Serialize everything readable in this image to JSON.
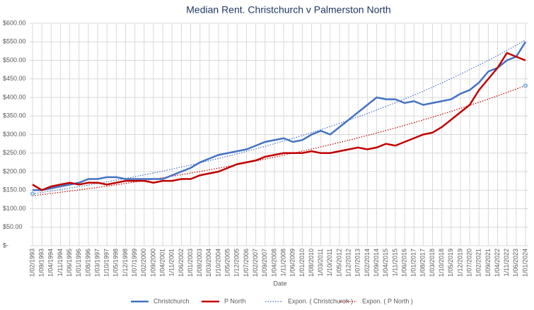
{
  "chart_data": {
    "type": "line",
    "title": "Median Rent. Christchurch v Palmerston North",
    "x_label": "Date",
    "categories": [
      "1/02/1993",
      "1/09/1993",
      "1/04/1994",
      "1/11/1994",
      "1/06/1995",
      "1/01/1996",
      "1/08/1996",
      "1/03/1997",
      "1/10/1997",
      "1/05/1998",
      "1/12/1998",
      "1/07/1999",
      "1/02/2000",
      "1/09/2000",
      "1/04/2001",
      "1/11/2001",
      "1/06/2002",
      "1/01/2003",
      "1/08/2003",
      "1/03/2004",
      "1/10/2004",
      "1/05/2005",
      "1/12/2005",
      "1/07/2006",
      "1/02/2007",
      "1/09/2007",
      "1/04/2008",
      "1/11/2008",
      "1/06/2009",
      "1/01/2010",
      "1/08/2010",
      "1/03/2011",
      "1/10/2011",
      "1/05/2012",
      "1/12/2012",
      "1/07/2013",
      "1/02/2014",
      "1/09/2014",
      "1/04/2015",
      "1/11/2015",
      "1/06/2016",
      "1/01/2017",
      "1/08/2017",
      "1/03/2018",
      "1/10/2018",
      "1/05/2019",
      "1/12/2019",
      "1/07/2020",
      "1/02/2021",
      "1/09/2021",
      "1/04/2022",
      "1/11/2022",
      "1/06/2023",
      "1/01/2024"
    ],
    "series": [
      {
        "name": "Christchurch",
        "color": "#4472c4",
        "values": [
          150,
          150,
          155,
          160,
          165,
          170,
          180,
          180,
          185,
          185,
          180,
          180,
          180,
          180,
          180,
          190,
          200,
          210,
          225,
          235,
          245,
          250,
          255,
          260,
          270,
          280,
          285,
          290,
          280,
          285,
          300,
          310,
          300,
          320,
          340,
          360,
          380,
          400,
          395,
          395,
          385,
          390,
          380,
          385,
          390,
          395,
          410,
          420,
          440,
          470,
          480,
          500,
          510,
          550
        ]
      },
      {
        "name": "P North",
        "color": "#c00000",
        "values": [
          165,
          150,
          160,
          165,
          170,
          165,
          170,
          170,
          165,
          170,
          175,
          175,
          175,
          170,
          175,
          175,
          180,
          180,
          190,
          195,
          200,
          210,
          220,
          225,
          230,
          240,
          245,
          250,
          250,
          250,
          255,
          250,
          250,
          255,
          260,
          265,
          260,
          265,
          275,
          270,
          280,
          290,
          300,
          305,
          320,
          340,
          360,
          380,
          420,
          450,
          480,
          520,
          510,
          500
        ]
      }
    ],
    "trendlines": [
      {
        "name": "Expon. ( Christchurch )",
        "color": "#4472c4",
        "from": 140,
        "to": 555
      },
      {
        "name": "Expon. ( P North )",
        "color": "#c00000",
        "from": 135,
        "to": 432
      }
    ],
    "ylim": [
      0,
      600
    ],
    "yticks": [
      {
        "value": 0,
        "label": "$-"
      },
      {
        "value": 50,
        "label": "$50.00"
      },
      {
        "value": 100,
        "label": "$100.00"
      },
      {
        "value": 150,
        "label": "$150.00"
      },
      {
        "value": 200,
        "label": "$200.00"
      },
      {
        "value": 250,
        "label": "$250.00"
      },
      {
        "value": 300,
        "label": "$300.00"
      },
      {
        "value": 350,
        "label": "$350.00"
      },
      {
        "value": 400,
        "label": "$400.00"
      },
      {
        "value": 450,
        "label": "$450.00"
      },
      {
        "value": 500,
        "label": "$500.00"
      },
      {
        "value": 550,
        "label": "$550.00"
      },
      {
        "value": 600,
        "label": "$600.00"
      }
    ],
    "grid": true
  }
}
